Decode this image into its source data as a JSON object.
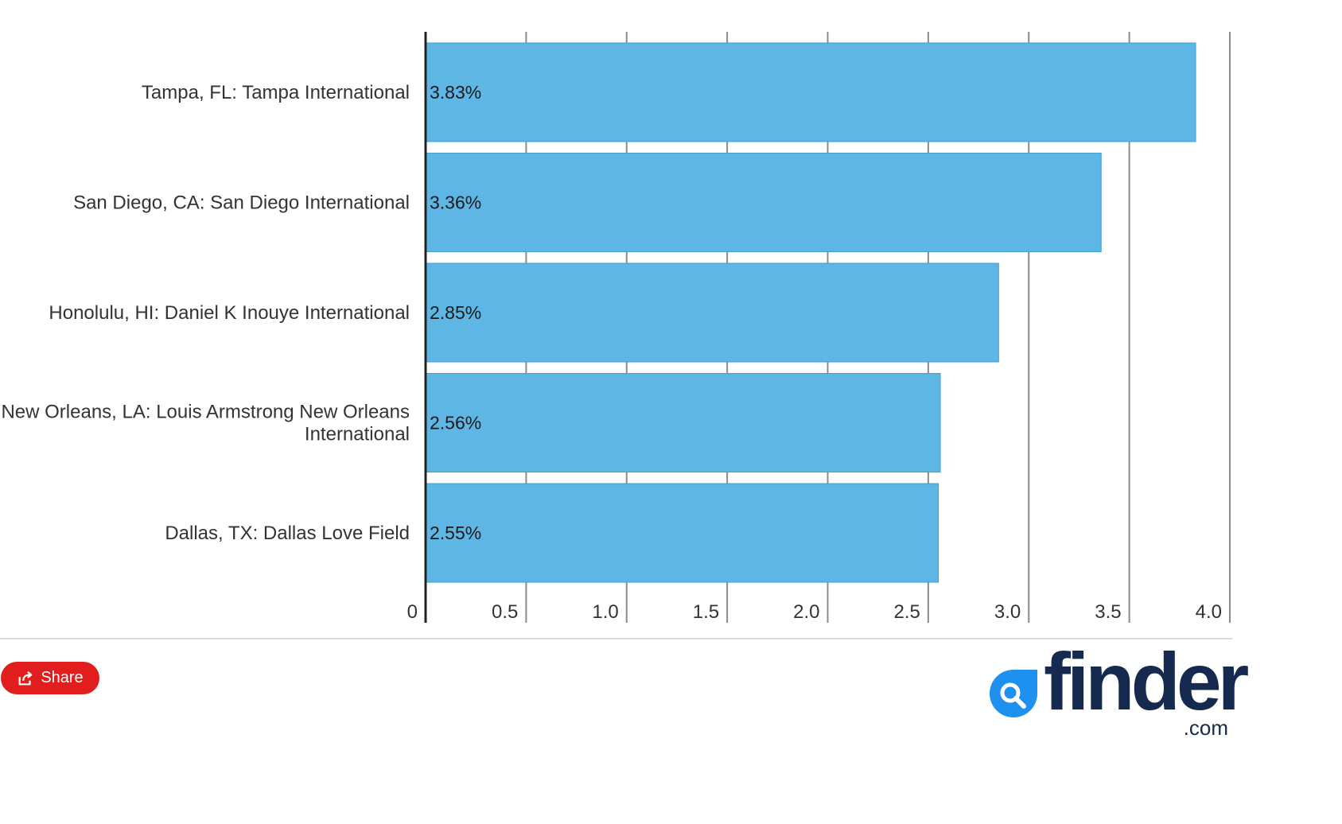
{
  "chart_data": {
    "type": "bar",
    "orientation": "horizontal",
    "categories": [
      [
        "Tampa, FL: Tampa International"
      ],
      [
        "San Diego, CA: San Diego International"
      ],
      [
        "Honolulu, HI: Daniel K Inouye International"
      ],
      [
        "New Orleans, LA: Louis Armstrong New Orleans",
        "International"
      ],
      [
        "Dallas, TX: Dallas Love Field"
      ]
    ],
    "values": [
      3.83,
      3.36,
      2.85,
      2.56,
      2.55
    ],
    "data_labels": [
      "3.83%",
      "3.36%",
      "2.85%",
      "2.56%",
      "2.55%"
    ],
    "xlim": [
      0,
      4.0
    ],
    "x_ticks": [
      0,
      0.5,
      1.0,
      1.5,
      2.0,
      2.5,
      3.0,
      3.5,
      4.0
    ],
    "x_tick_labels": [
      "0",
      "0.5",
      "1.0",
      "1.5",
      "2.0",
      "2.5",
      "3.0",
      "3.5",
      "4.0"
    ],
    "grid": true,
    "bar_color": "#5eb6e4",
    "bar_edge_color": "#3d9fd6",
    "grid_color": "#8c8c8c",
    "axis_color": "#222222"
  },
  "footer": {
    "share_label": "Share",
    "share_color": "#e21d1d",
    "logo_text": "finder",
    "logo_sub": ".com",
    "logo_color": "#152a4e",
    "logo_mark_color": "#1e90f0"
  }
}
